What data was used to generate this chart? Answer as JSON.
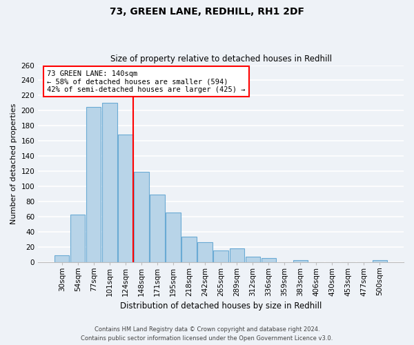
{
  "title": "73, GREEN LANE, REDHILL, RH1 2DF",
  "subtitle": "Size of property relative to detached houses in Redhill",
  "xlabel": "Distribution of detached houses by size in Redhill",
  "ylabel": "Number of detached properties",
  "bar_labels": [
    "30sqm",
    "54sqm",
    "77sqm",
    "101sqm",
    "124sqm",
    "148sqm",
    "171sqm",
    "195sqm",
    "218sqm",
    "242sqm",
    "265sqm",
    "289sqm",
    "312sqm",
    "336sqm",
    "359sqm",
    "383sqm",
    "406sqm",
    "430sqm",
    "453sqm",
    "477sqm",
    "500sqm"
  ],
  "bar_values": [
    9,
    63,
    205,
    210,
    168,
    119,
    89,
    65,
    33,
    26,
    15,
    18,
    7,
    5,
    0,
    2,
    0,
    0,
    0,
    0,
    2
  ],
  "bar_color": "#b8d4e8",
  "bar_edge_color": "#6aaad4",
  "vline_x_index": 4.5,
  "vline_color": "red",
  "annotation_title": "73 GREEN LANE: 140sqm",
  "annotation_line1": "← 58% of detached houses are smaller (594)",
  "annotation_line2": "42% of semi-detached houses are larger (425) →",
  "annotation_box_color": "white",
  "annotation_box_edge": "red",
  "ylim": [
    0,
    260
  ],
  "yticks": [
    0,
    20,
    40,
    60,
    80,
    100,
    120,
    140,
    160,
    180,
    200,
    220,
    240,
    260
  ],
  "footer_line1": "Contains HM Land Registry data © Crown copyright and database right 2024.",
  "footer_line2": "Contains public sector information licensed under the Open Government Licence v3.0.",
  "background_color": "#eef2f7",
  "grid_color": "white",
  "title_fontsize": 10,
  "subtitle_fontsize": 8.5,
  "xlabel_fontsize": 8.5,
  "ylabel_fontsize": 8,
  "tick_fontsize": 7.5,
  "annotation_fontsize": 7.5,
  "footer_fontsize": 6
}
